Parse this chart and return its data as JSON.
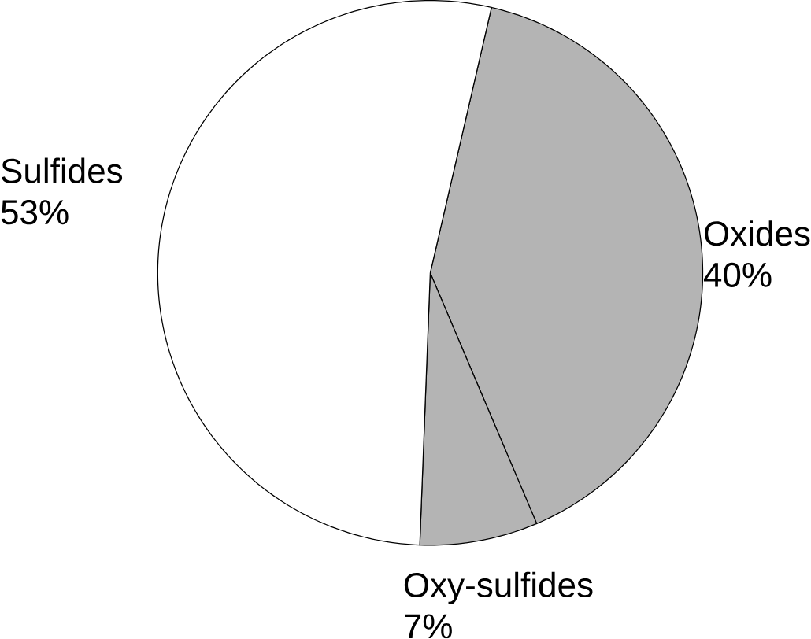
{
  "chart_data": {
    "type": "pie",
    "categories": [
      "Oxides",
      "Oxy-sulfides",
      "Sulfides"
    ],
    "values": [
      40,
      7,
      53
    ],
    "colors": [
      "#b4b4b4",
      "#b4b4b4",
      "#ffffff"
    ],
    "value_labels": [
      "40%",
      "7%",
      "53%"
    ]
  }
}
